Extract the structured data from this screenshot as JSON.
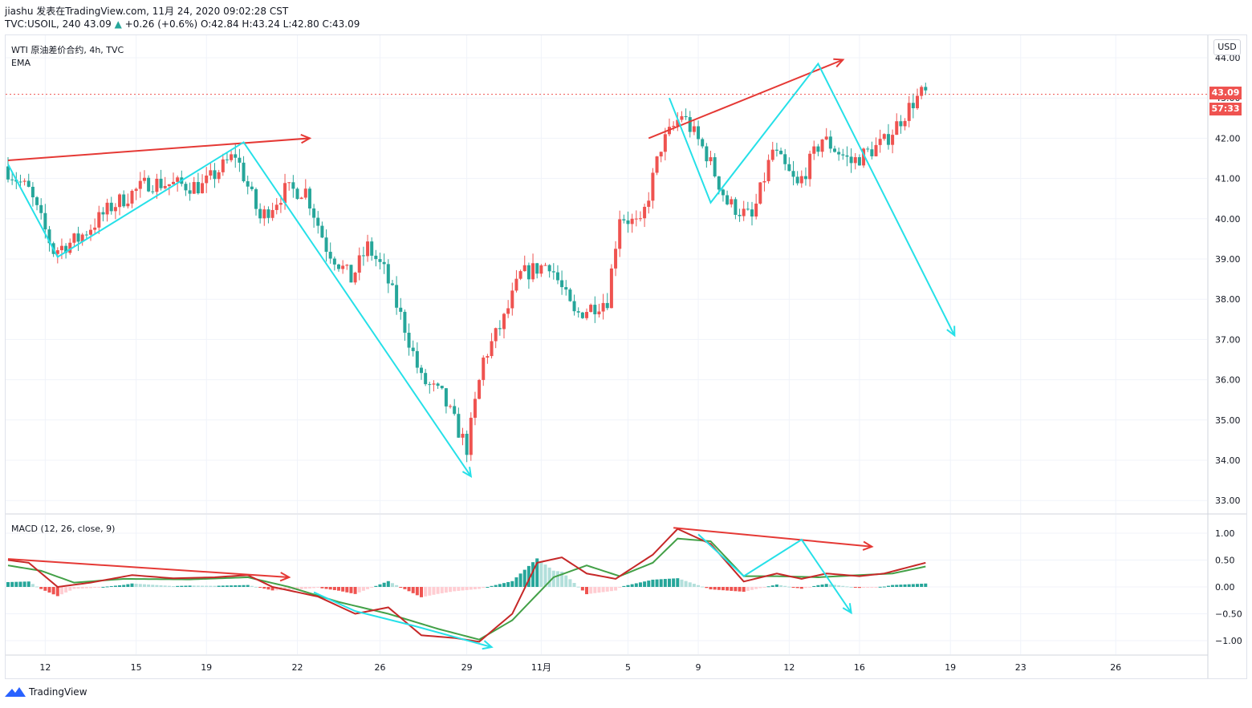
{
  "header": {
    "line1": "jiashu 发表在TradingView.com, 11月 24, 2020 09:02:28 CST",
    "symbol": "TVC:USOIL, 240",
    "last": "43.09",
    "change": "+0.26 (+0.6%)",
    "ohlc": "O:42.84 H:43.24 L:42.80 C:43.09",
    "up_glyph": "▲"
  },
  "legend": {
    "instrument": "WTI 原油差价合约, 4h, TVC",
    "ema": "EMA",
    "macd": "MACD (12, 26, close, 9)"
  },
  "currency": "USD",
  "price_tag": "43.09",
  "countdown_tag": "57:33",
  "brand": "TradingView",
  "colors": {
    "up": "#ef5350",
    "down": "#26a69a",
    "trend_red": "#e53935",
    "trend_cyan": "#26e0e8",
    "macd_line": "#c62828",
    "signal_line": "#43a047",
    "hist_pos_strong": "#26a69a",
    "hist_pos_weak": "#b2dfdb",
    "hist_neg_strong": "#ef5350",
    "hist_neg_weak": "#ffcdd2"
  },
  "chart_data": [
    {
      "type": "candlestick",
      "title": "WTI 原油差价合约, 4h, TVC",
      "y_ticks": [
        "44.00",
        "43.00",
        "42.00",
        "41.00",
        "40.00",
        "39.00",
        "38.00",
        "37.00",
        "36.00",
        "35.00",
        "34.00",
        "33.00"
      ],
      "x_ticks": [
        "12",
        "15",
        "19",
        "22",
        "26",
        "29",
        "11月",
        "5",
        "9",
        "12",
        "16",
        "19",
        "23",
        "26"
      ],
      "ylim": [
        32.6,
        44.5
      ],
      "anchors": [
        [
          0,
          41.3
        ],
        [
          6,
          40.7
        ],
        [
          12,
          39.2
        ],
        [
          18,
          39.5
        ],
        [
          26,
          40.3
        ],
        [
          35,
          40.9
        ],
        [
          48,
          40.8
        ],
        [
          56,
          41.6
        ],
        [
          62,
          40.0
        ],
        [
          68,
          40.7
        ],
        [
          73,
          40.7
        ],
        [
          78,
          39.3
        ],
        [
          84,
          38.5
        ],
        [
          88,
          39.3
        ],
        [
          92,
          38.7
        ],
        [
          97,
          37.3
        ],
        [
          101,
          36.0
        ],
        [
          106,
          35.6
        ],
        [
          112,
          34.3
        ],
        [
          116,
          36.5
        ],
        [
          121,
          37.5
        ],
        [
          125,
          38.6
        ],
        [
          132,
          38.9
        ],
        [
          138,
          37.6
        ],
        [
          146,
          38.0
        ],
        [
          149,
          40.1
        ],
        [
          154,
          39.8
        ],
        [
          159,
          41.8
        ],
        [
          164,
          42.6
        ],
        [
          170,
          41.6
        ],
        [
          175,
          40.4
        ],
        [
          181,
          40.0
        ],
        [
          186,
          41.7
        ],
        [
          192,
          40.8
        ],
        [
          198,
          42.0
        ],
        [
          205,
          41.4
        ],
        [
          213,
          41.9
        ],
        [
          220,
          42.9
        ],
        [
          222,
          43.1
        ]
      ],
      "n_bars": 223,
      "last_price": 43.09,
      "trendlines_red": [
        {
          "from": [
            0,
            41.45
          ],
          "to": [
            73,
            42.0
          ]
        },
        {
          "from": [
            155,
            42.0
          ],
          "to": [
            202,
            43.95
          ]
        }
      ],
      "trendlines_cyan": [
        [
          [
            0,
            41.35
          ],
          [
            12,
            39.05
          ],
          [
            57,
            41.9
          ],
          [
            112,
            33.6
          ]
        ],
        [
          [
            160,
            43.0
          ],
          [
            170,
            40.4
          ],
          [
            196,
            43.85
          ],
          [
            229,
            37.1
          ]
        ]
      ]
    },
    {
      "type": "line",
      "title": "MACD (12, 26, close, 9)",
      "series": [
        {
          "name": "MACD",
          "anchors": [
            [
              0,
              0.5
            ],
            [
              5,
              0.45
            ],
            [
              12,
              0.0
            ],
            [
              20,
              0.08
            ],
            [
              30,
              0.22
            ],
            [
              40,
              0.16
            ],
            [
              50,
              0.18
            ],
            [
              58,
              0.22
            ],
            [
              64,
              0.0
            ],
            [
              75,
              -0.18
            ],
            [
              84,
              -0.5
            ],
            [
              92,
              -0.38
            ],
            [
              100,
              -0.9
            ],
            [
              108,
              -0.95
            ],
            [
              114,
              -1.02
            ],
            [
              122,
              -0.5
            ],
            [
              128,
              0.45
            ],
            [
              134,
              0.55
            ],
            [
              140,
              0.25
            ],
            [
              147,
              0.15
            ],
            [
              156,
              0.6
            ],
            [
              162,
              1.08
            ],
            [
              170,
              0.8
            ],
            [
              178,
              0.1
            ],
            [
              186,
              0.25
            ],
            [
              192,
              0.15
            ],
            [
              198,
              0.25
            ],
            [
              206,
              0.2
            ],
            [
              212,
              0.25
            ],
            [
              222,
              0.45
            ]
          ]
        },
        {
          "name": "Signal",
          "anchors": [
            [
              0,
              0.4
            ],
            [
              8,
              0.3
            ],
            [
              16,
              0.08
            ],
            [
              28,
              0.15
            ],
            [
              44,
              0.14
            ],
            [
              58,
              0.18
            ],
            [
              68,
              0.0
            ],
            [
              80,
              -0.28
            ],
            [
              92,
              -0.5
            ],
            [
              104,
              -0.78
            ],
            [
              114,
              -0.98
            ],
            [
              122,
              -0.62
            ],
            [
              132,
              0.18
            ],
            [
              140,
              0.4
            ],
            [
              148,
              0.2
            ],
            [
              156,
              0.45
            ],
            [
              162,
              0.9
            ],
            [
              170,
              0.85
            ],
            [
              178,
              0.2
            ],
            [
              186,
              0.2
            ],
            [
              196,
              0.18
            ],
            [
              206,
              0.22
            ],
            [
              214,
              0.25
            ],
            [
              222,
              0.38
            ]
          ]
        }
      ],
      "y_ticks": [
        "1.00",
        "0.50",
        "0.00",
        "−0.50",
        "−1.00"
      ],
      "ylim": [
        -1.3,
        1.3
      ],
      "trendlines_red": [
        {
          "from": [
            0,
            0.52
          ],
          "to": [
            68,
            0.18
          ]
        },
        {
          "from": [
            161,
            1.1
          ],
          "to": [
            209,
            0.75
          ]
        }
      ],
      "trendlines_cyan": [
        [
          [
            74,
            -0.1
          ],
          [
            84,
            -0.45
          ],
          [
            98,
            -0.72
          ],
          [
            117,
            -1.12
          ]
        ],
        [
          [
            167,
            0.98
          ],
          [
            178,
            0.2
          ],
          [
            192,
            0.88
          ],
          [
            204,
            -0.48
          ]
        ]
      ]
    }
  ]
}
